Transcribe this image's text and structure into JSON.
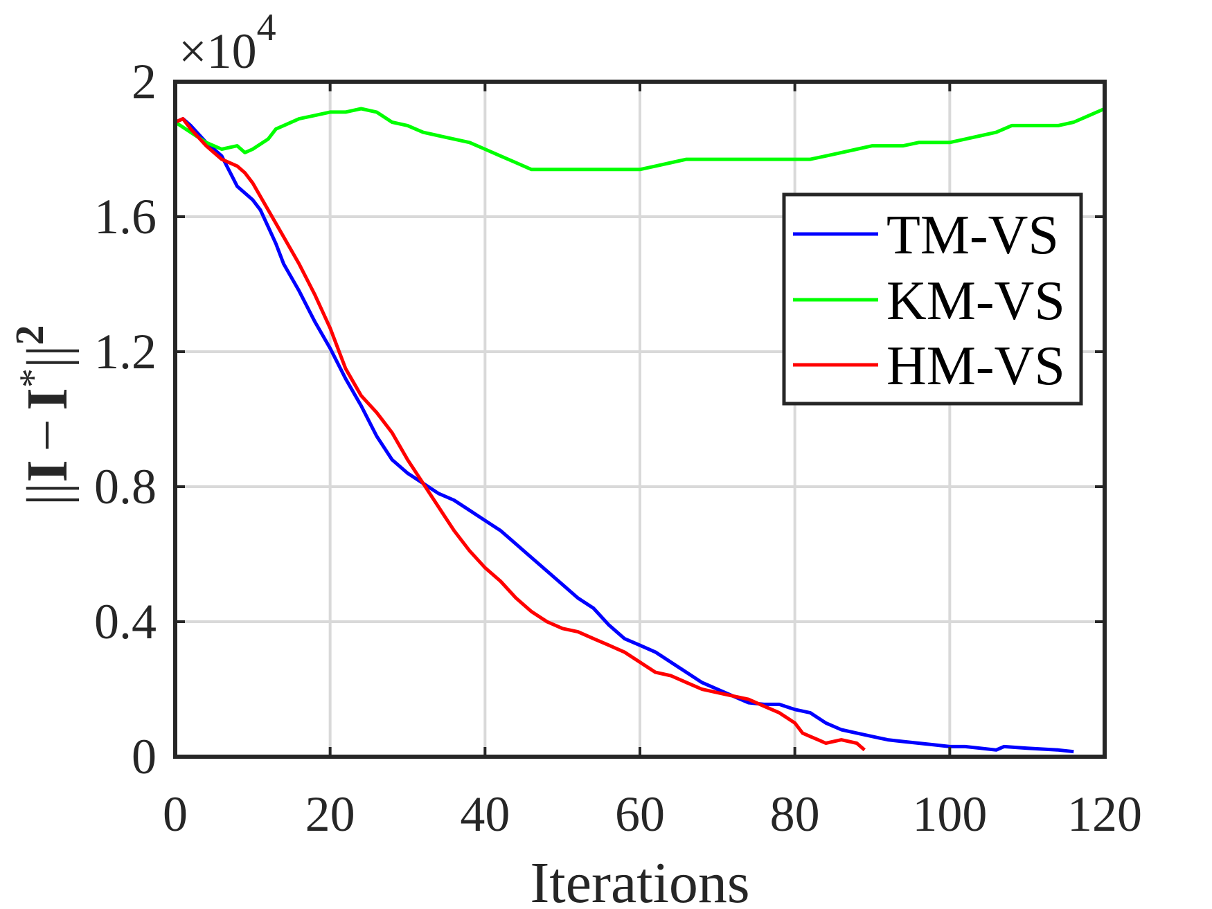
{
  "chart_data": {
    "type": "line",
    "title": "",
    "xlabel": "Iterations",
    "ylabel": "||I − I*||²",
    "ylabel_parts": {
      "bars": "||",
      "I": "I",
      "minus": "−",
      "star": "*",
      "sq": "2"
    },
    "y_multiplier": {
      "times": "×10",
      "exp": "4"
    },
    "xlim": [
      0,
      120
    ],
    "ylim": [
      0,
      2
    ],
    "xticks": [
      0,
      20,
      40,
      60,
      80,
      100,
      120
    ],
    "yticks": [
      0,
      0.4,
      0.8,
      1.2,
      1.6,
      2
    ],
    "xtick_labels": [
      "0",
      "20",
      "40",
      "60",
      "80",
      "100",
      "120"
    ],
    "ytick_labels": [
      "0",
      "0.4",
      "0.8",
      "1.2",
      "1.6",
      "2"
    ],
    "grid": true,
    "legend_position": "top-right",
    "series": [
      {
        "name": "TM-VS",
        "color": "#0000ff",
        "x": [
          0,
          1,
          2,
          4,
          6,
          8,
          10,
          11,
          12,
          13,
          14,
          16,
          18,
          20,
          22,
          24,
          26,
          28,
          30,
          32,
          34,
          36,
          38,
          40,
          42,
          44,
          46,
          48,
          50,
          52,
          54,
          56,
          58,
          60,
          62,
          64,
          66,
          68,
          70,
          72,
          74,
          76,
          78,
          80,
          82,
          84,
          86,
          88,
          90,
          92,
          94,
          96,
          98,
          100,
          102,
          104,
          106,
          107,
          110,
          114,
          116
        ],
        "y": [
          1.88,
          1.89,
          1.87,
          1.82,
          1.78,
          1.69,
          1.65,
          1.62,
          1.57,
          1.52,
          1.46,
          1.38,
          1.29,
          1.21,
          1.12,
          1.04,
          0.95,
          0.88,
          0.84,
          0.81,
          0.78,
          0.76,
          0.73,
          0.7,
          0.67,
          0.63,
          0.59,
          0.55,
          0.51,
          0.47,
          0.44,
          0.39,
          0.35,
          0.33,
          0.31,
          0.28,
          0.25,
          0.22,
          0.2,
          0.18,
          0.16,
          0.155,
          0.155,
          0.14,
          0.13,
          0.1,
          0.08,
          0.07,
          0.06,
          0.05,
          0.045,
          0.04,
          0.035,
          0.03,
          0.03,
          0.025,
          0.02,
          0.03,
          0.025,
          0.02,
          0.015
        ]
      },
      {
        "name": "KM-VS",
        "color": "#00ff00",
        "x": [
          0,
          2,
          4,
          6,
          8,
          9,
          10,
          12,
          13,
          14,
          16,
          18,
          20,
          22,
          24,
          26,
          28,
          30,
          32,
          34,
          36,
          38,
          40,
          42,
          44,
          46,
          48,
          50,
          52,
          54,
          56,
          58,
          60,
          62,
          64,
          66,
          68,
          70,
          72,
          74,
          76,
          78,
          80,
          82,
          84,
          86,
          88,
          90,
          92,
          94,
          96,
          98,
          100,
          102,
          104,
          106,
          108,
          110,
          112,
          114,
          116,
          118,
          120
        ],
        "y": [
          1.88,
          1.85,
          1.82,
          1.8,
          1.81,
          1.79,
          1.8,
          1.83,
          1.86,
          1.87,
          1.89,
          1.9,
          1.91,
          1.91,
          1.92,
          1.91,
          1.88,
          1.87,
          1.85,
          1.84,
          1.83,
          1.82,
          1.8,
          1.78,
          1.76,
          1.74,
          1.74,
          1.74,
          1.74,
          1.74,
          1.74,
          1.74,
          1.74,
          1.75,
          1.76,
          1.77,
          1.77,
          1.77,
          1.77,
          1.77,
          1.77,
          1.77,
          1.77,
          1.77,
          1.78,
          1.79,
          1.8,
          1.81,
          1.81,
          1.81,
          1.82,
          1.82,
          1.82,
          1.83,
          1.84,
          1.85,
          1.87,
          1.87,
          1.87,
          1.87,
          1.88,
          1.9,
          1.92
        ]
      },
      {
        "name": "HM-VS",
        "color": "#ff0000",
        "x": [
          0,
          1,
          2,
          4,
          6,
          8,
          9,
          10,
          12,
          14,
          16,
          18,
          19,
          20,
          22,
          24,
          26,
          28,
          30,
          32,
          34,
          36,
          38,
          40,
          42,
          44,
          46,
          48,
          50,
          52,
          54,
          56,
          58,
          60,
          62,
          64,
          66,
          68,
          70,
          72,
          74,
          76,
          78,
          80,
          81,
          82,
          83,
          84,
          86,
          88,
          89
        ],
        "y": [
          1.88,
          1.89,
          1.86,
          1.81,
          1.77,
          1.75,
          1.73,
          1.7,
          1.62,
          1.54,
          1.46,
          1.37,
          1.32,
          1.27,
          1.15,
          1.07,
          1.02,
          0.96,
          0.88,
          0.81,
          0.74,
          0.67,
          0.61,
          0.56,
          0.52,
          0.47,
          0.43,
          0.4,
          0.38,
          0.37,
          0.35,
          0.33,
          0.31,
          0.28,
          0.25,
          0.24,
          0.22,
          0.2,
          0.19,
          0.18,
          0.17,
          0.15,
          0.13,
          0.1,
          0.07,
          0.06,
          0.05,
          0.04,
          0.05,
          0.04,
          0.02
        ]
      }
    ]
  }
}
